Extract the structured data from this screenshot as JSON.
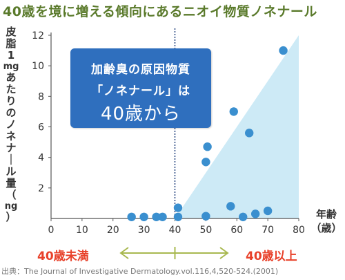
{
  "title": "40歳を境に増える傾向にあるニオイ物質ノネナール",
  "y_label_lines": [
    "皮",
    "脂",
    "1",
    "mg",
    "あ",
    "た",
    "り",
    "の",
    "ノ",
    "ネ",
    "ナ",
    "｜",
    "ル",
    "量",
    "（",
    "ng",
    "）"
  ],
  "x_label_lines": [
    "年齢",
    "（歳）"
  ],
  "callout": {
    "line1": "加齢臭の原因物質",
    "line2": "「ノネナール」は",
    "line3": "40歳から"
  },
  "range_left_label": "40歳未満",
  "range_right_label": "40歳以上",
  "source": "出典：The Journal of Investigative Dermatology.vol.116,4,520-524.(2001)",
  "colors": {
    "title": "#5a7a2b",
    "point": "#3a8fcf",
    "shade": "#cdeaf6",
    "callout": "#2f6fbe",
    "range_text": "#e8412a",
    "arrow": "#a8b84f"
  },
  "chart_data": {
    "type": "scatter",
    "xlim": [
      0,
      80
    ],
    "ylim": [
      0,
      12
    ],
    "x_ticks": [
      0,
      10,
      20,
      30,
      40,
      50,
      60,
      70,
      80
    ],
    "y_ticks": [
      2,
      4,
      6,
      8,
      10,
      12
    ],
    "divider_x": 40,
    "shaded_region": [
      [
        40,
        0
      ],
      [
        80,
        12
      ],
      [
        80,
        0
      ]
    ],
    "points": [
      {
        "x": 26,
        "y": 0.1
      },
      {
        "x": 30,
        "y": 0.1
      },
      {
        "x": 34,
        "y": 0.1
      },
      {
        "x": 36,
        "y": 0.1
      },
      {
        "x": 41,
        "y": 0.1
      },
      {
        "x": 41,
        "y": 0.7
      },
      {
        "x": 50,
        "y": 0.15
      },
      {
        "x": 50,
        "y": 3.7
      },
      {
        "x": 50.5,
        "y": 4.7
      },
      {
        "x": 58,
        "y": 0.8
      },
      {
        "x": 59,
        "y": 7.0
      },
      {
        "x": 62,
        "y": 0.1
      },
      {
        "x": 64,
        "y": 5.6
      },
      {
        "x": 66,
        "y": 0.3
      },
      {
        "x": 70,
        "y": 0.5
      },
      {
        "x": 75,
        "y": 11.0
      }
    ]
  }
}
